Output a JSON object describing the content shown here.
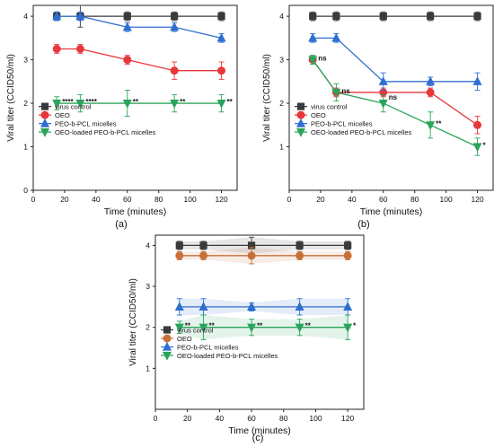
{
  "figure": {
    "panel_labels": [
      "(a)",
      "(b)",
      "(c)"
    ]
  },
  "legend_labels": [
    "virus control",
    "OEO",
    "PEO-b-PCL micelles",
    "OEO-loaded PEO-b-PCL micelles"
  ],
  "colors": {
    "virus control": "#3a3a3a",
    "OEO": "#e8383b",
    "PEO-b-PCL micelles": "#2f6fd0",
    "OEO-loaded PEO-b-PCL micelles": "#2aa45a",
    "OEO (c)": "#c7703a"
  },
  "chart_data": [
    {
      "panel": "(a)",
      "type": "line",
      "xlabel": "Time (minutes)",
      "ylabel": "Viral titer (CCID50/ml)",
      "xlim": [
        0,
        130
      ],
      "ylim": [
        0,
        4.25
      ],
      "xticks": [
        0,
        20,
        40,
        60,
        80,
        100,
        120
      ],
      "yticks": [
        0,
        1,
        2,
        3,
        4
      ],
      "legend_placement": "bottom-left",
      "x": [
        15,
        30,
        60,
        90,
        120
      ],
      "series": [
        {
          "name": "virus control",
          "marker": "square",
          "values": [
            4.0,
            4.0,
            4.0,
            4.0,
            4.0
          ],
          "errors": [
            0.1,
            0.25,
            0.1,
            0.1,
            0.1
          ]
        },
        {
          "name": "OEO",
          "marker": "circle",
          "values": [
            3.25,
            3.25,
            3.0,
            2.75,
            2.75
          ],
          "errors": [
            0.1,
            0.1,
            0.1,
            0.2,
            0.2
          ]
        },
        {
          "name": "PEO-b-PCL micelles",
          "marker": "triangle-up",
          "values": [
            4.0,
            4.0,
            3.75,
            3.75,
            3.5
          ],
          "errors": [
            0.1,
            0.1,
            0.1,
            0.1,
            0.1
          ]
        },
        {
          "name": "OEO-loaded PEO-b-PCL micelles",
          "marker": "triangle-down",
          "values": [
            2.0,
            2.0,
            2.0,
            2.0,
            2.0
          ],
          "errors": [
            0.15,
            0.2,
            0.3,
            0.2,
            0.2
          ]
        }
      ],
      "annotations": [
        {
          "x": 15,
          "y": 2.0,
          "text": "****"
        },
        {
          "x": 30,
          "y": 2.0,
          "text": "****"
        },
        {
          "x": 60,
          "y": 2.0,
          "text": "**"
        },
        {
          "x": 90,
          "y": 2.0,
          "text": "**"
        },
        {
          "x": 120,
          "y": 2.0,
          "text": "**"
        }
      ]
    },
    {
      "panel": "(b)",
      "type": "line",
      "xlabel": "Time (minutes)",
      "ylabel": "Viral titer (CCID50/ml)",
      "xlim": [
        0,
        130
      ],
      "ylim": [
        0,
        4.25
      ],
      "xticks": [
        0,
        20,
        40,
        60,
        80,
        100,
        120
      ],
      "yticks": [
        1,
        2,
        3,
        4
      ],
      "legend_placement": "bottom-left",
      "x": [
        15,
        30,
        60,
        90,
        120
      ],
      "series": [
        {
          "name": "virus control",
          "marker": "square",
          "values": [
            4.0,
            4.0,
            4.0,
            4.0,
            4.0
          ],
          "errors": [
            0.1,
            0.1,
            0.1,
            0.1,
            0.1
          ]
        },
        {
          "name": "OEO",
          "marker": "circle",
          "values": [
            3.0,
            2.25,
            2.25,
            2.25,
            1.5
          ],
          "errors": [
            0.1,
            0.1,
            0.1,
            0.1,
            0.2
          ]
        },
        {
          "name": "PEO-b-PCL micelles",
          "marker": "triangle-up",
          "values": [
            3.5,
            3.5,
            2.5,
            2.5,
            2.5
          ],
          "errors": [
            0.1,
            0.1,
            0.2,
            0.1,
            0.2
          ]
        },
        {
          "name": "OEO-loaded PEO-b-PCL micelles",
          "marker": "triangle-down",
          "values": [
            3.0,
            2.25,
            2.0,
            1.5,
            1.0
          ],
          "errors": [
            0.1,
            0.2,
            0.2,
            0.3,
            0.2
          ]
        }
      ],
      "annotations": [
        {
          "x": 15,
          "y": 3.0,
          "text": "ns"
        },
        {
          "x": 30,
          "y": 2.25,
          "text": "ns"
        },
        {
          "x": 60,
          "y": 2.1,
          "text": "ns"
        },
        {
          "x": 90,
          "y": 1.5,
          "text": "**"
        },
        {
          "x": 120,
          "y": 1.0,
          "text": "*"
        }
      ]
    },
    {
      "panel": "(c)",
      "type": "line",
      "xlabel": "Time (minutes)",
      "ylabel": "Viral titer (CCID50/ml)",
      "xlim": [
        0,
        130
      ],
      "ylim": [
        0,
        4.25
      ],
      "xticks": [
        0,
        20,
        40,
        60,
        80,
        100,
        120
      ],
      "yticks": [
        1,
        2,
        3,
        4
      ],
      "legend_placement": "bottom-left",
      "x": [
        15,
        30,
        60,
        90,
        120
      ],
      "series": [
        {
          "name": "virus control",
          "marker": "square",
          "values": [
            4.0,
            4.0,
            4.0,
            4.0,
            4.0
          ],
          "errors": [
            0.1,
            0.1,
            0.2,
            0.1,
            0.1
          ]
        },
        {
          "name": "OEO",
          "marker": "circle",
          "values": [
            3.75,
            3.75,
            3.75,
            3.75,
            3.75
          ],
          "errors": [
            0.1,
            0.1,
            0.2,
            0.1,
            0.1
          ]
        },
        {
          "name": "PEO-b-PCL micelles",
          "marker": "triangle-up",
          "values": [
            2.5,
            2.5,
            2.5,
            2.5,
            2.5
          ],
          "errors": [
            0.2,
            0.2,
            0.1,
            0.2,
            0.2
          ]
        },
        {
          "name": "OEO-loaded PEO-b-PCL micelles",
          "marker": "triangle-down",
          "values": [
            2.0,
            2.0,
            2.0,
            2.0,
            2.0
          ],
          "errors": [
            0.15,
            0.3,
            0.2,
            0.2,
            0.3
          ]
        }
      ],
      "annotations": [
        {
          "x": 15,
          "y": 2.0,
          "text": "**"
        },
        {
          "x": 30,
          "y": 2.0,
          "text": "**"
        },
        {
          "x": 60,
          "y": 2.0,
          "text": "**"
        },
        {
          "x": 90,
          "y": 2.0,
          "text": "**"
        },
        {
          "x": 120,
          "y": 2.0,
          "text": "*"
        }
      ]
    }
  ]
}
